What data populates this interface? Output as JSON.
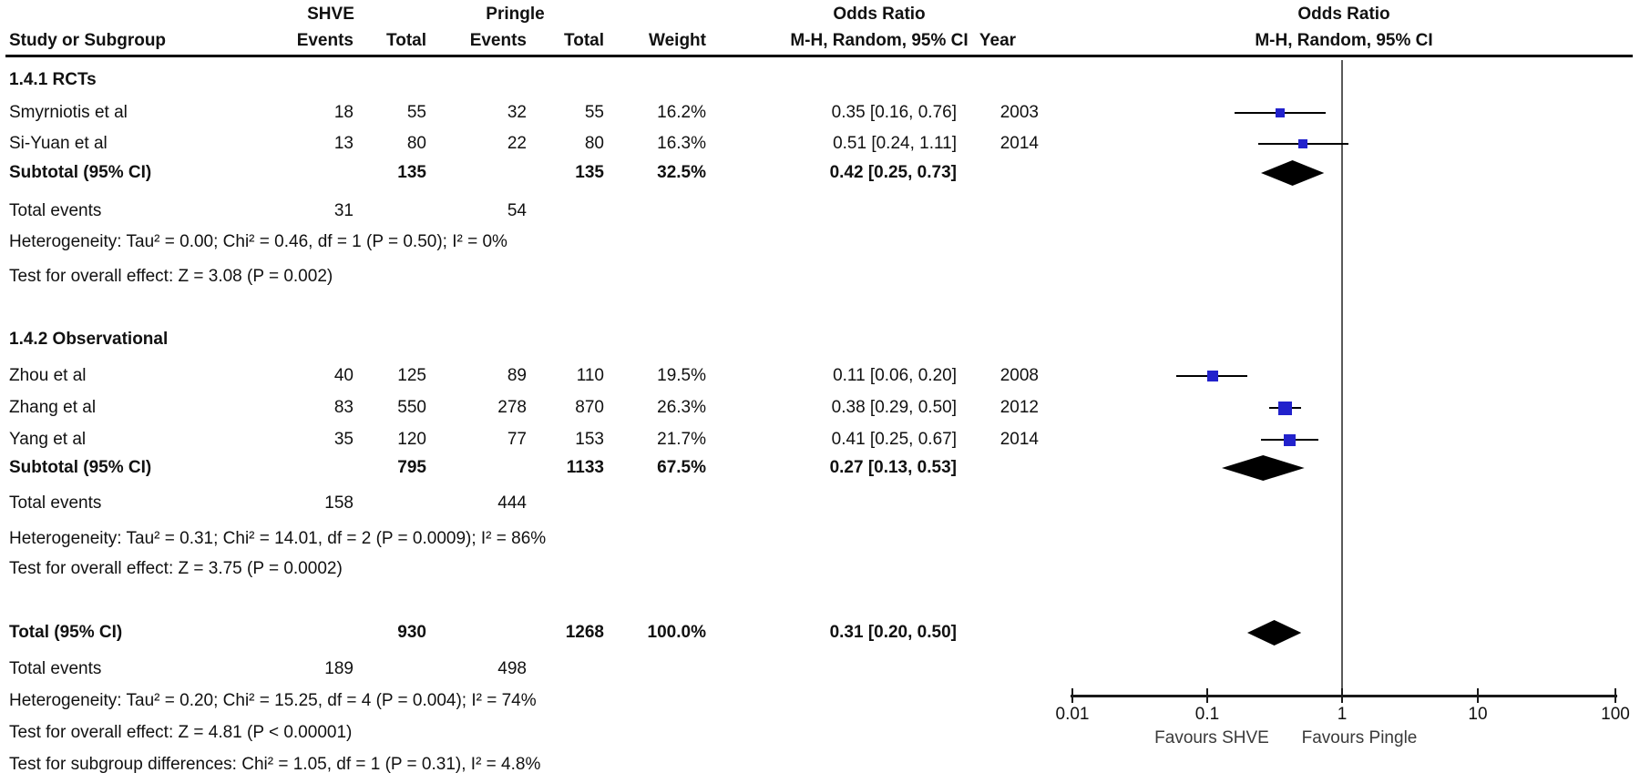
{
  "table": {
    "headers": {
      "study": "Study or Subgroup",
      "group1": "SHVE",
      "group2": "Pringle",
      "events": "Events",
      "total": "Total",
      "weight": "Weight",
      "or_line1": "Odds Ratio",
      "or_line2": "M-H, Random, 95% CI",
      "year": "Year",
      "plot_line1": "Odds Ratio",
      "plot_line2": "M-H, Random, 95% CI"
    },
    "g1_title": "1.4.1 RCTs",
    "g2_title": "1.4.2 Observational",
    "r1": {
      "name": "Smyrniotis et al",
      "e1": "18",
      "t1": "55",
      "e2": "32",
      "t2": "55",
      "w": "16.2%",
      "or": "0.35 [0.16, 0.76]",
      "year": "2003"
    },
    "r2": {
      "name": "Si-Yuan et al",
      "e1": "13",
      "t1": "80",
      "e2": "22",
      "t2": "80",
      "w": "16.3%",
      "or": "0.51 [0.24, 1.11]",
      "year": "2014"
    },
    "sub1": {
      "label": "Subtotal (95% CI)",
      "t1": "135",
      "t2": "135",
      "w": "32.5%",
      "or": "0.42 [0.25, 0.73]"
    },
    "tev1": {
      "label": "Total events",
      "e1": "31",
      "e2": "54"
    },
    "het1": "Heterogeneity: Tau² = 0.00; Chi² = 0.46, df = 1 (P = 0.50); I² = 0%",
    "test1": "Test for overall effect: Z = 3.08 (P = 0.002)",
    "r3": {
      "name": "Zhou et al",
      "e1": "40",
      "t1": "125",
      "e2": "89",
      "t2": "110",
      "w": "19.5%",
      "or": "0.11 [0.06, 0.20]",
      "year": "2008"
    },
    "r4": {
      "name": "Zhang et al",
      "e1": "83",
      "t1": "550",
      "e2": "278",
      "t2": "870",
      "w": "26.3%",
      "or": "0.38 [0.29, 0.50]",
      "year": "2012"
    },
    "r5": {
      "name": "Yang et al",
      "e1": "35",
      "t1": "120",
      "e2": "77",
      "t2": "153",
      "w": "21.7%",
      "or": "0.41 [0.25, 0.67]",
      "year": "2014"
    },
    "sub2": {
      "label": "Subtotal (95% CI)",
      "t1": "795",
      "t2": "1133",
      "w": "67.5%",
      "or": "0.27 [0.13, 0.53]"
    },
    "tev2": {
      "label": "Total events",
      "e1": "158",
      "e2": "444"
    },
    "het2": "Heterogeneity: Tau² = 0.31; Chi² = 14.01, df = 2 (P = 0.0009); I² = 86%",
    "test2": "Test for overall effect: Z = 3.75 (P = 0.0002)",
    "total": {
      "label": "Total (95% CI)",
      "t1": "930",
      "t2": "1268",
      "w": "100.0%",
      "or": "0.31 [0.20, 0.50]"
    },
    "tev3": {
      "label": "Total events",
      "e1": "189",
      "e2": "498"
    },
    "het3": "Heterogeneity: Tau² = 0.20; Chi² = 15.25, df = 4 (P = 0.004); I² = 74%",
    "test3": "Test for overall effect: Z = 4.81 (P < 0.00001)",
    "diff": "Test for subgroup differences: Chi² = 1.05, df = 1 (P = 0.31), I² = 4.8%"
  },
  "colors": {
    "square": "#2222cc",
    "diamond": "#000000",
    "ci_line": "#000000",
    "null_line": "#5a5a5a",
    "axis": "#1a1a1a"
  },
  "chart_data": {
    "type": "forest",
    "effect_measure": "Odds Ratio, M-H, Random, 95% CI",
    "x_scale": "log",
    "x_ticks": [
      "0.01",
      "0.1",
      "1",
      "10",
      "100"
    ],
    "null_value": 1,
    "favours_left": "Favours SHVE",
    "favours_right": "Favours Pingle",
    "studies": [
      {
        "id": "smyrniotis",
        "label": "Smyrniotis et al",
        "subgroup": "1.4.1 RCTs",
        "shve_events": 18,
        "shve_total": 55,
        "pringle_events": 32,
        "pringle_total": 55,
        "weight_pct": 16.2,
        "or": 0.35,
        "ci_low": 0.16,
        "ci_high": 0.76,
        "year": 2003
      },
      {
        "id": "siyuan",
        "label": "Si-Yuan et al",
        "subgroup": "1.4.1 RCTs",
        "shve_events": 13,
        "shve_total": 80,
        "pringle_events": 22,
        "pringle_total": 80,
        "weight_pct": 16.3,
        "or": 0.51,
        "ci_low": 0.24,
        "ci_high": 1.11,
        "year": 2014
      },
      {
        "id": "zhou",
        "label": "Zhou et al",
        "subgroup": "1.4.2 Observational",
        "shve_events": 40,
        "shve_total": 125,
        "pringle_events": 89,
        "pringle_total": 110,
        "weight_pct": 19.5,
        "or": 0.11,
        "ci_low": 0.06,
        "ci_high": 0.2,
        "year": 2008
      },
      {
        "id": "zhang",
        "label": "Zhang et al",
        "subgroup": "1.4.2 Observational",
        "shve_events": 83,
        "shve_total": 550,
        "pringle_events": 278,
        "pringle_total": 870,
        "weight_pct": 26.3,
        "or": 0.38,
        "ci_low": 0.29,
        "ci_high": 0.5,
        "year": 2012
      },
      {
        "id": "yang",
        "label": "Yang et al",
        "subgroup": "1.4.2 Observational",
        "shve_events": 35,
        "shve_total": 120,
        "pringle_events": 77,
        "pringle_total": 153,
        "weight_pct": 21.7,
        "or": 0.41,
        "ci_low": 0.25,
        "ci_high": 0.67,
        "year": 2014
      }
    ],
    "summaries": [
      {
        "id": "sub1",
        "label": "Subtotal 1.4.1 (95% CI)",
        "shve_total": 135,
        "pringle_total": 135,
        "weight_pct": 32.5,
        "or": 0.42,
        "ci_low": 0.25,
        "ci_high": 0.73
      },
      {
        "id": "sub2",
        "label": "Subtotal 1.4.2 (95% CI)",
        "shve_total": 795,
        "pringle_total": 1133,
        "weight_pct": 67.5,
        "or": 0.27,
        "ci_low": 0.13,
        "ci_high": 0.53
      },
      {
        "id": "total",
        "label": "Total (95% CI)",
        "shve_total": 930,
        "pringle_total": 1268,
        "weight_pct": 100.0,
        "or": 0.31,
        "ci_low": 0.2,
        "ci_high": 0.5
      }
    ]
  }
}
